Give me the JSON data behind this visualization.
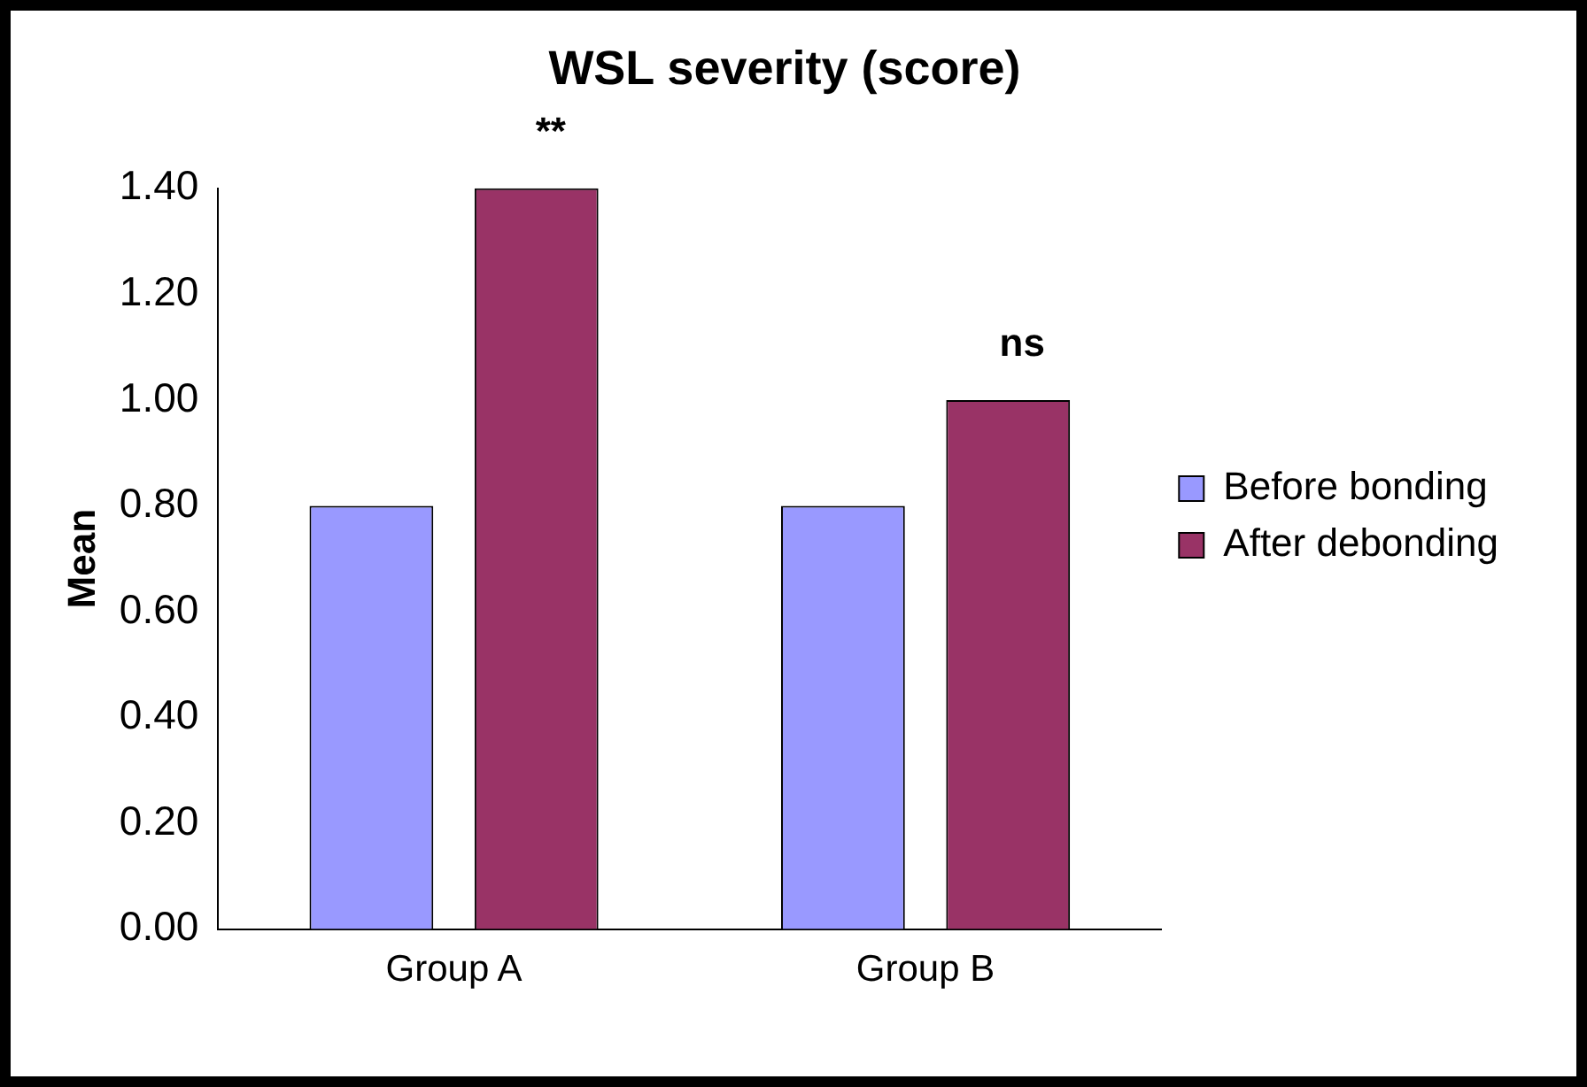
{
  "chart_data": {
    "type": "bar",
    "title": "WSL severity (score)",
    "ylabel": "Mean",
    "categories": [
      "Group A",
      "Group B"
    ],
    "series": [
      {
        "name": "Before bonding",
        "color": "#9999ff",
        "values": [
          0.8,
          0.8
        ]
      },
      {
        "name": "After debonding",
        "color": "#993366",
        "values": [
          1.4,
          1.0
        ]
      }
    ],
    "ylim": [
      0,
      1.4
    ],
    "yticks": [
      {
        "value": 0,
        "label": "0.00"
      },
      {
        "value": 0.2,
        "label": "0.20"
      },
      {
        "value": 0.4,
        "label": "0.40"
      },
      {
        "value": 0.6,
        "label": "0.60"
      },
      {
        "value": 0.8,
        "label": "0.80"
      },
      {
        "value": 1.0,
        "label": "1.00"
      },
      {
        "value": 1.2,
        "label": "1.20"
      },
      {
        "value": 1.4,
        "label": "1.40"
      }
    ],
    "annotations": [
      "**",
      "ns"
    ],
    "grid": false,
    "legend": "right"
  }
}
